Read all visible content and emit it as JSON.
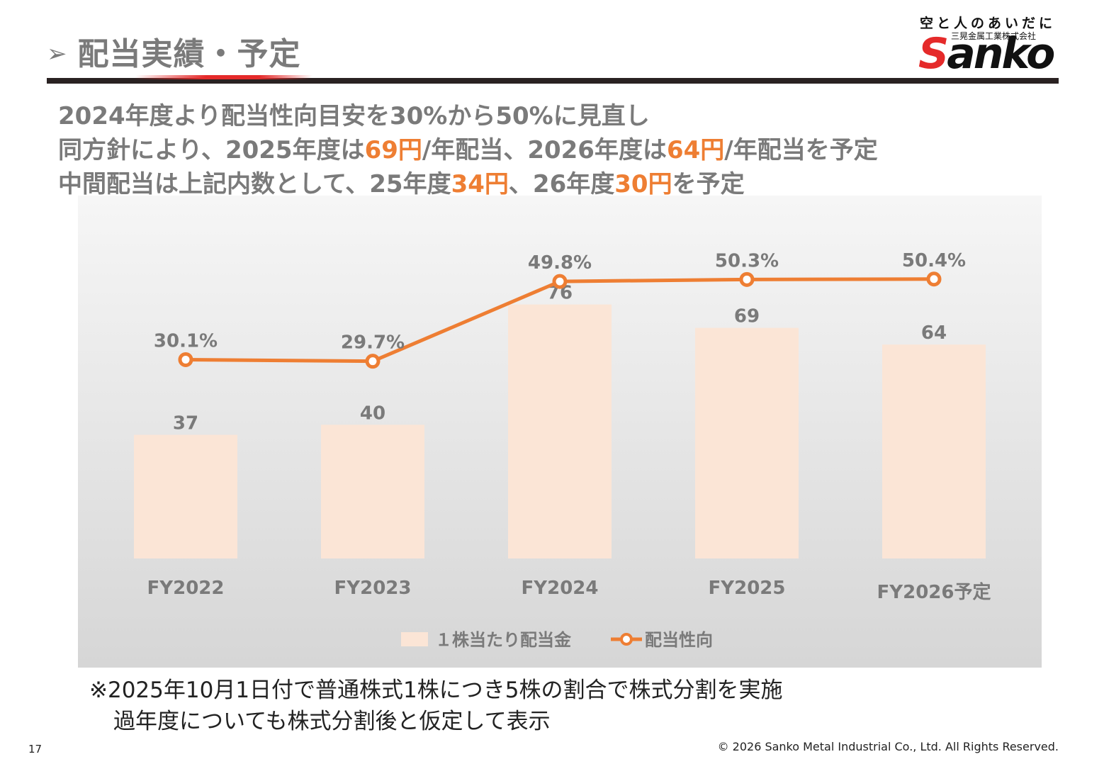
{
  "page": {
    "title_marker": "➢",
    "title": "配当実績・予定",
    "page_number": "17",
    "copyright": "© 2026 Sanko Metal Industrial Co., Ltd. All Rights Reserved."
  },
  "logo": {
    "tagline": "空と人のあいだに",
    "company": "三晃金属工業株式会社",
    "brand_first": "S",
    "brand_rest": "anko"
  },
  "headline": {
    "line1": "2024年度より配当性向目安を30%から50%に見直し",
    "line2": {
      "a": "同方針により、2025年度は",
      "b": "69円",
      "c": "/年配当、2026年度は",
      "d": "64円",
      "e": "/年配当を予定"
    },
    "line3": {
      "a": "中間配当は上記内数として、25年度",
      "b": "34円",
      "c": "、26年度",
      "d": "30円",
      "e": "を予定"
    },
    "highlight_color": "#ee7e33"
  },
  "chart_data": {
    "type": "bar",
    "categories": [
      "FY2022",
      "FY2023",
      "FY2024",
      "FY2025",
      "FY2026予定"
    ],
    "series": [
      {
        "name": "１株当たり配当金",
        "type": "bar",
        "values": [
          37,
          40,
          76,
          69,
          64
        ],
        "labels": [
          "37",
          "40",
          "76",
          "69",
          "64"
        ],
        "color": "#fbe5d6"
      },
      {
        "name": "配当性向",
        "type": "line",
        "values": [
          30.1,
          29.7,
          49.8,
          50.3,
          50.4
        ],
        "labels": [
          "30.1%",
          "29.7%",
          "49.8%",
          "50.3%",
          "50.4%"
        ],
        "color": "#ee7e33"
      }
    ],
    "ylim_bar": [
      0,
      95
    ],
    "ylim_line": [
      -20,
      60
    ],
    "legend_position": "bottom",
    "grid": false
  },
  "footnote": {
    "line1": "※2025年10月1日付で普通株式1株につき5株の割合で株式分割を実施",
    "line2": "過年度についても株式分割後と仮定して表示"
  }
}
